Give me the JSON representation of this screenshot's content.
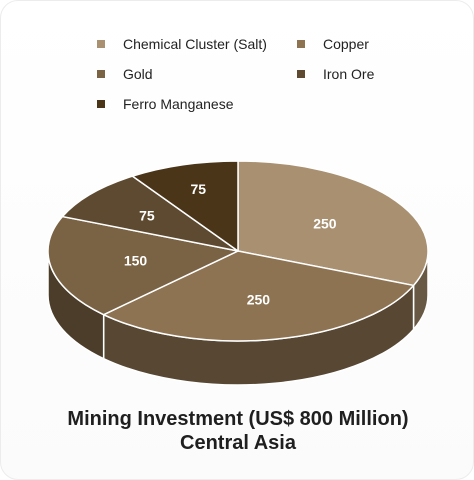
{
  "chart_data": {
    "type": "pie",
    "title": "Mining Investment (US$ 800 Million)",
    "subtitle": "Central Asia",
    "labels": [
      "Chemical Cluster (Salt)",
      "Copper",
      "Gold",
      "Iron Ore",
      "Ferro Manganese"
    ],
    "values": [
      250,
      250,
      150,
      75,
      75
    ],
    "colors": [
      "#a89070",
      "#8d7352",
      "#7a6244",
      "#5e4a30",
      "#4a3519"
    ],
    "legend_position": "top",
    "data_labels": [
      "250",
      "250",
      "150",
      "75",
      "75"
    ]
  }
}
